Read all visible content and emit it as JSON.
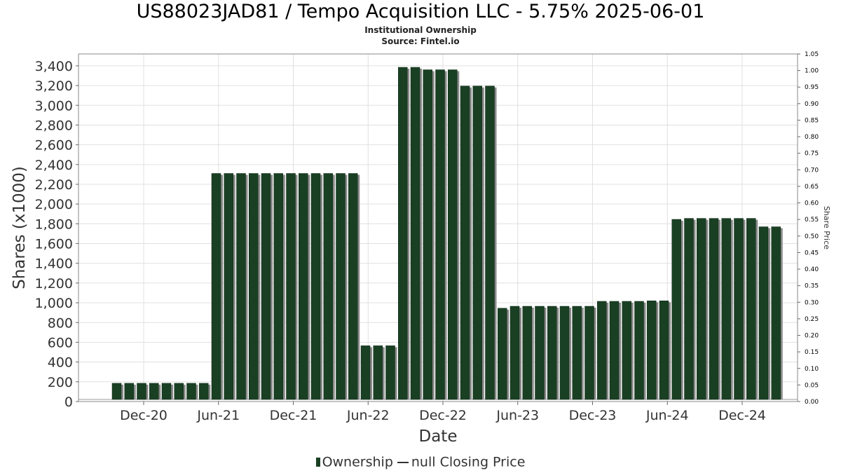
{
  "chart_data": {
    "type": "bar",
    "title": "US88023JAD81 / Tempo Acquisition LLC - 5.75% 2025-06-01",
    "subtitle": "Institutional Ownership",
    "source": "Source: Fintel.io",
    "xlabel": "Date",
    "ylabel": "Shares (x1000)",
    "y2label": "Share Price",
    "ylim": [
      0,
      3520
    ],
    "y2lim": [
      0,
      1.05
    ],
    "yticks": [
      "0",
      "200",
      "400",
      "600",
      "800",
      "1,000",
      "1,200",
      "1,400",
      "1,600",
      "1,800",
      "2,000",
      "2,200",
      "2,400",
      "2,600",
      "2,800",
      "3,000",
      "3,200",
      "3,400"
    ],
    "y2ticks": [
      "0.00",
      "0.05",
      "0.10",
      "0.15",
      "0.20",
      "0.25",
      "0.30",
      "0.35",
      "0.40",
      "0.45",
      "0.50",
      "0.55",
      "0.60",
      "0.65",
      "0.70",
      "0.75",
      "0.80",
      "0.85",
      "0.90",
      "0.95",
      "1.00",
      "1.05"
    ],
    "xticks": [
      "Dec-20",
      "Jun-21",
      "Dec-21",
      "Jun-22",
      "Dec-22",
      "Jun-23",
      "Dec-23",
      "Jun-24",
      "Dec-24"
    ],
    "grid": true,
    "legend_position": "bottom",
    "series": [
      {
        "name": "Ownership",
        "color": "#1a4024",
        "values": [
          185,
          185,
          185,
          185,
          185,
          185,
          185,
          185,
          2310,
          2310,
          2310,
          2310,
          2310,
          2310,
          2310,
          2310,
          2310,
          2310,
          2310,
          2310,
          565,
          565,
          565,
          3385,
          3385,
          3360,
          3360,
          3360,
          3195,
          3195,
          3195,
          945,
          965,
          965,
          965,
          965,
          965,
          965,
          965,
          1015,
          1015,
          1015,
          1015,
          1020,
          1020,
          1845,
          1855,
          1855,
          1855,
          1855,
          1855,
          1855,
          1770,
          1770
        ]
      }
    ],
    "legend": [
      {
        "label": "Ownership",
        "kind": "bar",
        "color": "#1a4024"
      },
      {
        "label": "null Closing Price",
        "kind": "line",
        "color": "#333333"
      }
    ]
  }
}
